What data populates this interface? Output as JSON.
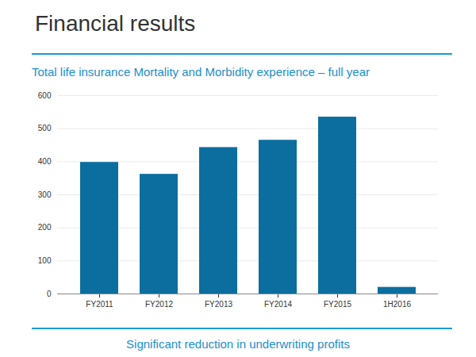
{
  "chart_data": {
    "type": "bar",
    "title": "Financial results",
    "subtitle": "Total life insurance Mortality and Morbidity experience – full year",
    "annotations": [
      "Significant reduction in underwriting profits"
    ],
    "categories": [
      "FY2011",
      "FY2012",
      "FY2013",
      "FY2014",
      "FY2015",
      "1H2016"
    ],
    "values": [
      398,
      362,
      443,
      465,
      535,
      20
    ],
    "color": "#0b6e9f",
    "ylim": [
      0,
      600
    ],
    "yticks": [
      0,
      100,
      200,
      300,
      400,
      500,
      600
    ],
    "grid": true
  }
}
